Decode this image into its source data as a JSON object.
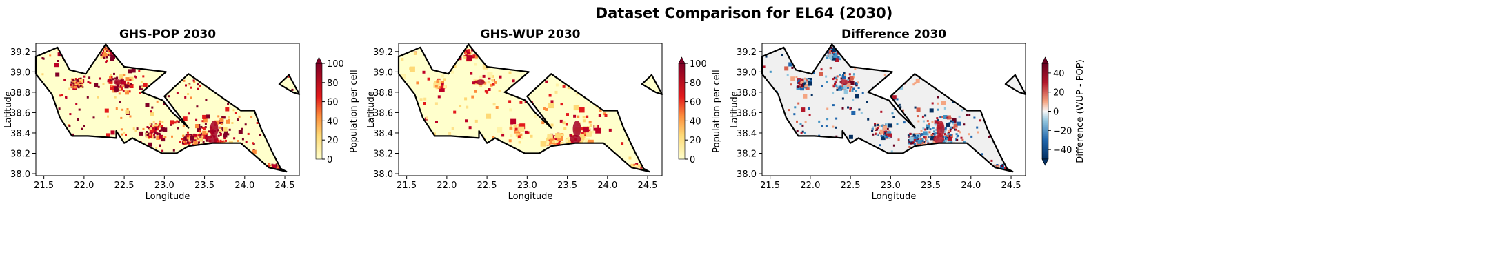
{
  "figure": {
    "title": "Dataset Comparison for EL64 (2030)"
  },
  "chart_data": [
    {
      "type": "heatmap",
      "title": "GHS-POP 2030",
      "xlabel": "Longitude",
      "ylabel": "Latitude",
      "xlim": [
        21.4,
        24.68
      ],
      "ylim": [
        37.98,
        39.28
      ],
      "xticks": [
        21.5,
        22.0,
        22.5,
        23.0,
        23.5,
        24.0,
        24.5
      ],
      "yticks": [
        38.0,
        38.2,
        38.4,
        38.6,
        38.8,
        39.0,
        39.2
      ],
      "colorbar": {
        "label": "Population per cell",
        "colormap": "YlOrRd",
        "range": [
          0,
          100
        ],
        "ticks": [
          0,
          20,
          40,
          60,
          80,
          100
        ],
        "extend": "max"
      }
    },
    {
      "type": "heatmap",
      "title": "GHS-WUP 2030",
      "xlabel": "Longitude",
      "ylabel": "Latitude",
      "xlim": [
        21.4,
        24.68
      ],
      "ylim": [
        37.98,
        39.28
      ],
      "xticks": [
        21.5,
        22.0,
        22.5,
        23.0,
        23.5,
        24.0,
        24.5
      ],
      "yticks": [
        38.0,
        38.2,
        38.4,
        38.6,
        38.8,
        39.0,
        39.2
      ],
      "colorbar": {
        "label": "Population per cell",
        "colormap": "YlOrRd",
        "range": [
          0,
          100
        ],
        "ticks": [
          0,
          20,
          40,
          60,
          80,
          100
        ],
        "extend": "max"
      }
    },
    {
      "type": "heatmap",
      "title": "Difference 2030",
      "xlabel": "Longitude",
      "ylabel": "Latitude",
      "xlim": [
        21.4,
        24.68
      ],
      "ylim": [
        37.98,
        39.28
      ],
      "xticks": [
        21.5,
        22.0,
        22.5,
        23.0,
        23.5,
        24.0,
        24.5
      ],
      "yticks": [
        38.0,
        38.2,
        38.4,
        38.6,
        38.8,
        39.0,
        39.2
      ],
      "colorbar": {
        "label": "Difference (WUP - POP)",
        "colormap": "RdBu_r",
        "range": [
          -50,
          50
        ],
        "ticks": [
          -40,
          -20,
          0,
          20,
          40
        ],
        "extend": "both"
      }
    }
  ],
  "region_outline": {
    "main": [
      [
        21.4,
        39.15
      ],
      [
        21.67,
        39.24
      ],
      [
        21.82,
        39.02
      ],
      [
        22.02,
        38.98
      ],
      [
        22.27,
        39.27
      ],
      [
        22.5,
        39.05
      ],
      [
        23.02,
        39.0
      ],
      [
        22.72,
        38.8
      ],
      [
        22.98,
        38.72
      ],
      [
        23.1,
        38.6
      ],
      [
        23.3,
        38.45
      ],
      [
        23.0,
        38.76
      ],
      [
        23.3,
        38.98
      ],
      [
        23.95,
        38.62
      ],
      [
        24.12,
        38.62
      ],
      [
        24.2,
        38.45
      ],
      [
        24.35,
        38.2
      ],
      [
        24.45,
        38.05
      ],
      [
        24.52,
        38.02
      ],
      [
        24.3,
        38.06
      ],
      [
        23.95,
        38.3
      ],
      [
        23.6,
        38.3
      ],
      [
        23.3,
        38.27
      ],
      [
        23.15,
        38.2
      ],
      [
        22.97,
        38.2
      ],
      [
        22.6,
        38.35
      ],
      [
        22.5,
        38.3
      ],
      [
        22.4,
        38.42
      ],
      [
        22.4,
        38.35
      ],
      [
        22.05,
        38.37
      ],
      [
        21.85,
        38.37
      ],
      [
        21.7,
        38.55
      ],
      [
        21.6,
        38.78
      ],
      [
        21.4,
        38.98
      ]
    ],
    "islet": [
      [
        24.43,
        38.88
      ],
      [
        24.55,
        38.97
      ],
      [
        24.68,
        38.78
      ],
      [
        24.6,
        38.8
      ]
    ]
  }
}
